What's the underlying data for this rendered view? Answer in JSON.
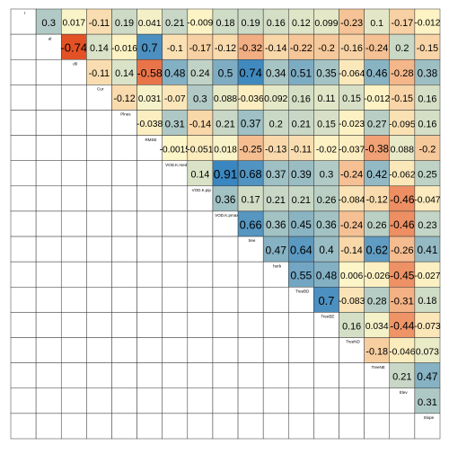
{
  "chart_data": {
    "type": "correlation-matrix",
    "variables": [
      "r",
      "al",
      "d0",
      "Cur",
      "Plnes",
      "RMSE",
      "VOD.K.med",
      "VOD.K.pip",
      "VOD.K.pmax",
      "tree",
      "herb",
      "TreeBD",
      "TreeBE",
      "TreeND",
      "TreeNE",
      "Elev",
      "Slope"
    ],
    "rows": [
      [
        0.3,
        0.017,
        -0.11,
        0.19,
        0.041,
        0.21,
        -0.009,
        0.18,
        0.19,
        0.16,
        0.12,
        0.099,
        -0.23,
        0.1,
        -0.17,
        -0.012
      ],
      [
        -0.74,
        0.14,
        -0.016,
        0.7,
        -0.1,
        -0.17,
        -0.12,
        -0.32,
        -0.14,
        -0.22,
        -0.2,
        -0.16,
        -0.24,
        0.2,
        -0.15
      ],
      [
        -0.11,
        0.14,
        -0.58,
        0.48,
        0.24,
        0.5,
        0.74,
        0.34,
        0.51,
        0.35,
        -0.064,
        0.46,
        -0.28,
        0.38
      ],
      [
        -0.12,
        0.031,
        -0.07,
        0.3,
        0.088,
        -0.036,
        0.092,
        0.16,
        0.11,
        0.15,
        -0.012,
        -0.15,
        0.16
      ],
      [
        -0.038,
        0.31,
        -0.14,
        0.21,
        0.37,
        0.2,
        0.21,
        0.15,
        -0.023,
        0.27,
        -0.095,
        0.16
      ],
      [
        -0.0015,
        -0.051,
        0.018,
        -0.25,
        -0.13,
        -0.11,
        -0.02,
        -0.037,
        -0.38,
        0.088,
        -0.2
      ],
      [
        0.14,
        0.91,
        0.68,
        0.37,
        0.39,
        0.3,
        -0.24,
        0.42,
        -0.062,
        0.25
      ],
      [
        0.36,
        0.17,
        0.21,
        0.21,
        0.26,
        -0.084,
        -0.12,
        -0.46,
        -0.047
      ],
      [
        0.66,
        0.36,
        0.45,
        0.36,
        -0.24,
        0.26,
        -0.46,
        0.23
      ],
      [
        0.47,
        0.64,
        0.4,
        -0.14,
        0.62,
        -0.26,
        0.41
      ],
      [
        0.55,
        0.48,
        0.006,
        -0.026,
        -0.45,
        -0.027
      ],
      [
        0.7,
        -0.083,
        0.28,
        -0.31,
        0.18
      ],
      [
        0.16,
        0.034,
        -0.44,
        -0.073
      ],
      [
        -0.18,
        -0.046,
        0.073
      ],
      [
        0.21,
        0.47
      ],
      [
        0.31
      ]
    ],
    "colors": {
      "negative": "#e34a1f",
      "zero": "#fdf6c8",
      "positive": "#3a86c0"
    }
  }
}
